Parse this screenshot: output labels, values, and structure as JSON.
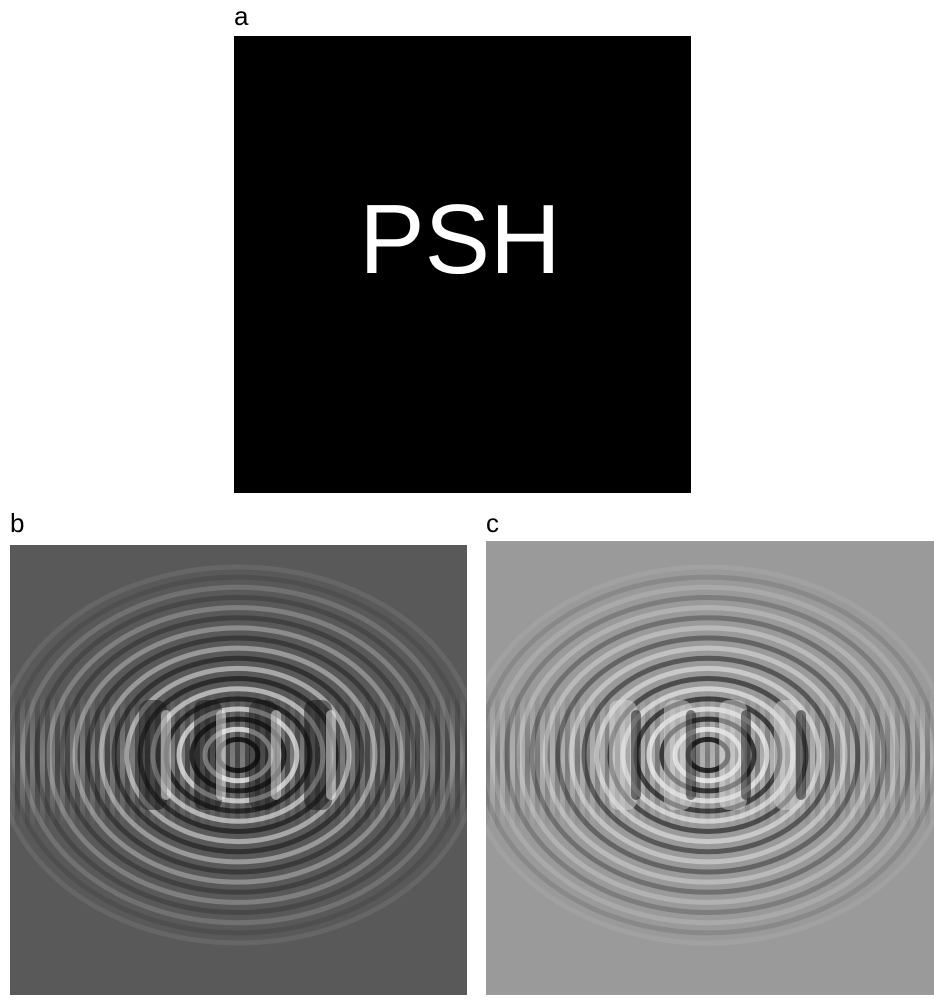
{
  "panels": [
    {
      "label": "a",
      "text": "PSH"
    },
    {
      "label": "b"
    },
    {
      "label": "c"
    }
  ]
}
